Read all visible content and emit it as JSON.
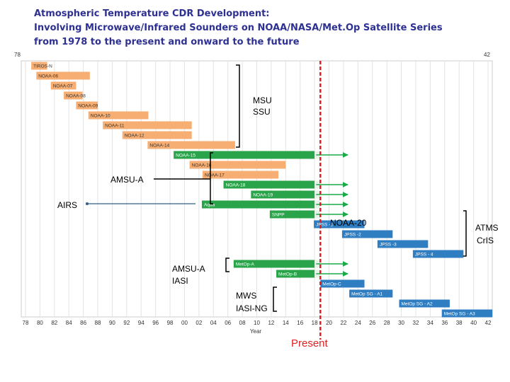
{
  "title_lines": [
    "Atmospheric Temperature CDR Development:",
    "Involving Microwave/Infrared Sounders on NOAA/NASA/Met.Op Satellite Series",
    "from 1978 to the present and onward to the future"
  ],
  "colors": {
    "title": "#2e3192",
    "msu_ssu": "#f7ae72",
    "amsu_current": "#2aa44a",
    "future": "#2f7ec2",
    "present_line": "#e02020",
    "arrow": "#1aaa4a"
  },
  "chart_data": {
    "type": "gantt",
    "title": "Atmospheric Temperature CDR Development: Involving Microwave/Infrared Sounders on NOAA/NASA/Met.Op Satellite Series from 1978 to the present and onward to the future",
    "xlabel": "Year",
    "x_range": [
      1978,
      2042
    ],
    "corner_labels": {
      "left": "78",
      "right": "42"
    },
    "x_ticks": [
      "78",
      "80",
      "82",
      "84",
      "86",
      "88",
      "90",
      "92",
      "94",
      "96",
      "98",
      "00",
      "02",
      "04",
      "06",
      "08",
      "10",
      "12",
      "14",
      "16",
      "18",
      "20",
      "22",
      "24",
      "26",
      "28",
      "30",
      "32",
      "34",
      "36",
      "38",
      "40",
      "42"
    ],
    "present_year": 2018.8,
    "present_label": "Present",
    "bars": [
      {
        "name": "TIROS-N",
        "start": 1978.8,
        "end": 1981.0,
        "group": "msu_ssu",
        "continues": false
      },
      {
        "name": "NOAA-06",
        "start": 1979.5,
        "end": 1986.9,
        "group": "msu_ssu",
        "continues": false
      },
      {
        "name": "NOAA-07",
        "start": 1981.5,
        "end": 1985.0,
        "group": "msu_ssu",
        "continues": false
      },
      {
        "name": "NOAA-08",
        "start": 1983.3,
        "end": 1985.9,
        "group": "msu_ssu",
        "continues": false
      },
      {
        "name": "NOAA-09",
        "start": 1985.0,
        "end": 1988.0,
        "group": "msu_ssu",
        "continues": false
      },
      {
        "name": "NOAA-10",
        "start": 1986.7,
        "end": 1995.0,
        "group": "msu_ssu",
        "continues": false
      },
      {
        "name": "NOAA-11",
        "start": 1988.7,
        "end": 2001.0,
        "group": "msu_ssu",
        "continues": false
      },
      {
        "name": "NOAA-12",
        "start": 1991.4,
        "end": 2001.0,
        "group": "msu_ssu",
        "continues": false
      },
      {
        "name": "NOAA-14",
        "start": 1994.9,
        "end": 2007.0,
        "group": "msu_ssu",
        "continues": false
      },
      {
        "name": "NOAA-15",
        "start": 1998.5,
        "end": 2018.0,
        "group": "amsu_current",
        "continues": true
      },
      {
        "name": "NOAA-16",
        "start": 2000.7,
        "end": 2014.0,
        "group": "msu_ssu",
        "continues": false
      },
      {
        "name": "NOAA-17",
        "start": 2002.5,
        "end": 2013.0,
        "group": "msu_ssu",
        "continues": false
      },
      {
        "name": "NOAA-18",
        "start": 2005.4,
        "end": 2018.0,
        "group": "amsu_current",
        "continues": true
      },
      {
        "name": "NOAA-19",
        "start": 2009.2,
        "end": 2018.0,
        "group": "amsu_current",
        "continues": true
      },
      {
        "name": "Aqua",
        "start": 2002.4,
        "end": 2018.0,
        "group": "amsu_current",
        "continues": true
      },
      {
        "name": "SNPP",
        "start": 2011.8,
        "end": 2018.0,
        "group": "amsu_current",
        "continues": true
      },
      {
        "name": "JPSS -1",
        "start": 2017.9,
        "end": 2024.9,
        "group": "future",
        "continues": false
      },
      {
        "name": "JPSS -2",
        "start": 2021.8,
        "end": 2028.8,
        "group": "future",
        "continues": false
      },
      {
        "name": "JPSS -3",
        "start": 2026.7,
        "end": 2033.7,
        "group": "future",
        "continues": false
      },
      {
        "name": "JPSS - 4",
        "start": 2031.6,
        "end": 2038.6,
        "group": "future",
        "continues": false
      },
      {
        "name": "MetOp-A",
        "start": 2006.8,
        "end": 2018.0,
        "group": "amsu_current",
        "continues": true
      },
      {
        "name": "MetOp-B",
        "start": 2012.7,
        "end": 2018.0,
        "group": "amsu_current",
        "continues": true
      },
      {
        "name": "MetOp-C",
        "start": 2018.8,
        "end": 2024.9,
        "group": "future",
        "continues": false
      },
      {
        "name": "MetOp SG - A1",
        "start": 2022.8,
        "end": 2028.8,
        "group": "future",
        "continues": false
      },
      {
        "name": "MetOp SG - A2",
        "start": 2029.7,
        "end": 2036.7,
        "group": "future",
        "continues": false
      },
      {
        "name": "MetOp SG - A3",
        "start": 2035.6,
        "end": 2042.6,
        "group": "future",
        "continues": false
      }
    ],
    "annotations": {
      "msu_ssu": [
        "MSU",
        "SSU"
      ],
      "amsu_a": "AMSU-A",
      "airs": "AIRS",
      "noaa20": "NOAA-20",
      "atms_cris": [
        "ATMS",
        "CrIS"
      ],
      "amsu_a_iasi": [
        "AMSU-A",
        "IASI"
      ],
      "mws_iasi_ng": [
        "MWS",
        "IASI-NG"
      ]
    }
  }
}
